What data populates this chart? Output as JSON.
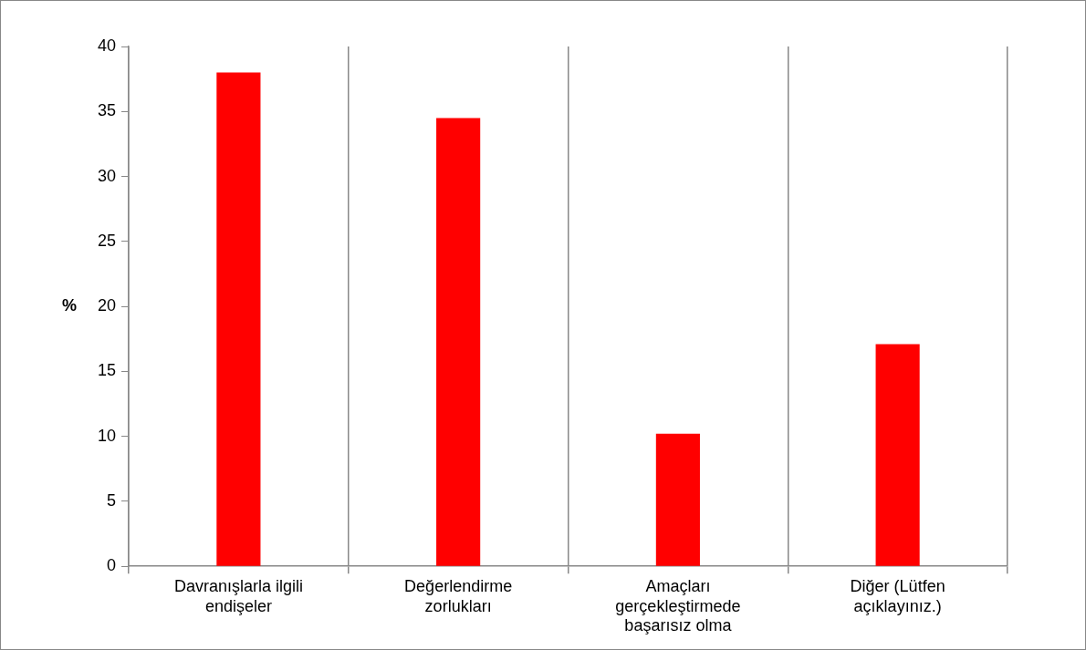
{
  "chart_data": {
    "type": "bar",
    "ylabel": "%",
    "categories": [
      "Davranışlarla ilgili endişeler",
      "Değerlendirme zorlukları",
      "Amaçları gerçekleştirmede başarısız olma",
      "Diğer (Lütfen açıklayınız.)"
    ],
    "values": [
      38,
      34.5,
      10.2,
      17.1
    ],
    "color": "#ff0000",
    "ylim": [
      0,
      40
    ],
    "yticks": [
      0,
      5,
      10,
      15,
      20,
      25,
      30,
      35,
      40
    ],
    "grid": "x",
    "legend": false
  }
}
